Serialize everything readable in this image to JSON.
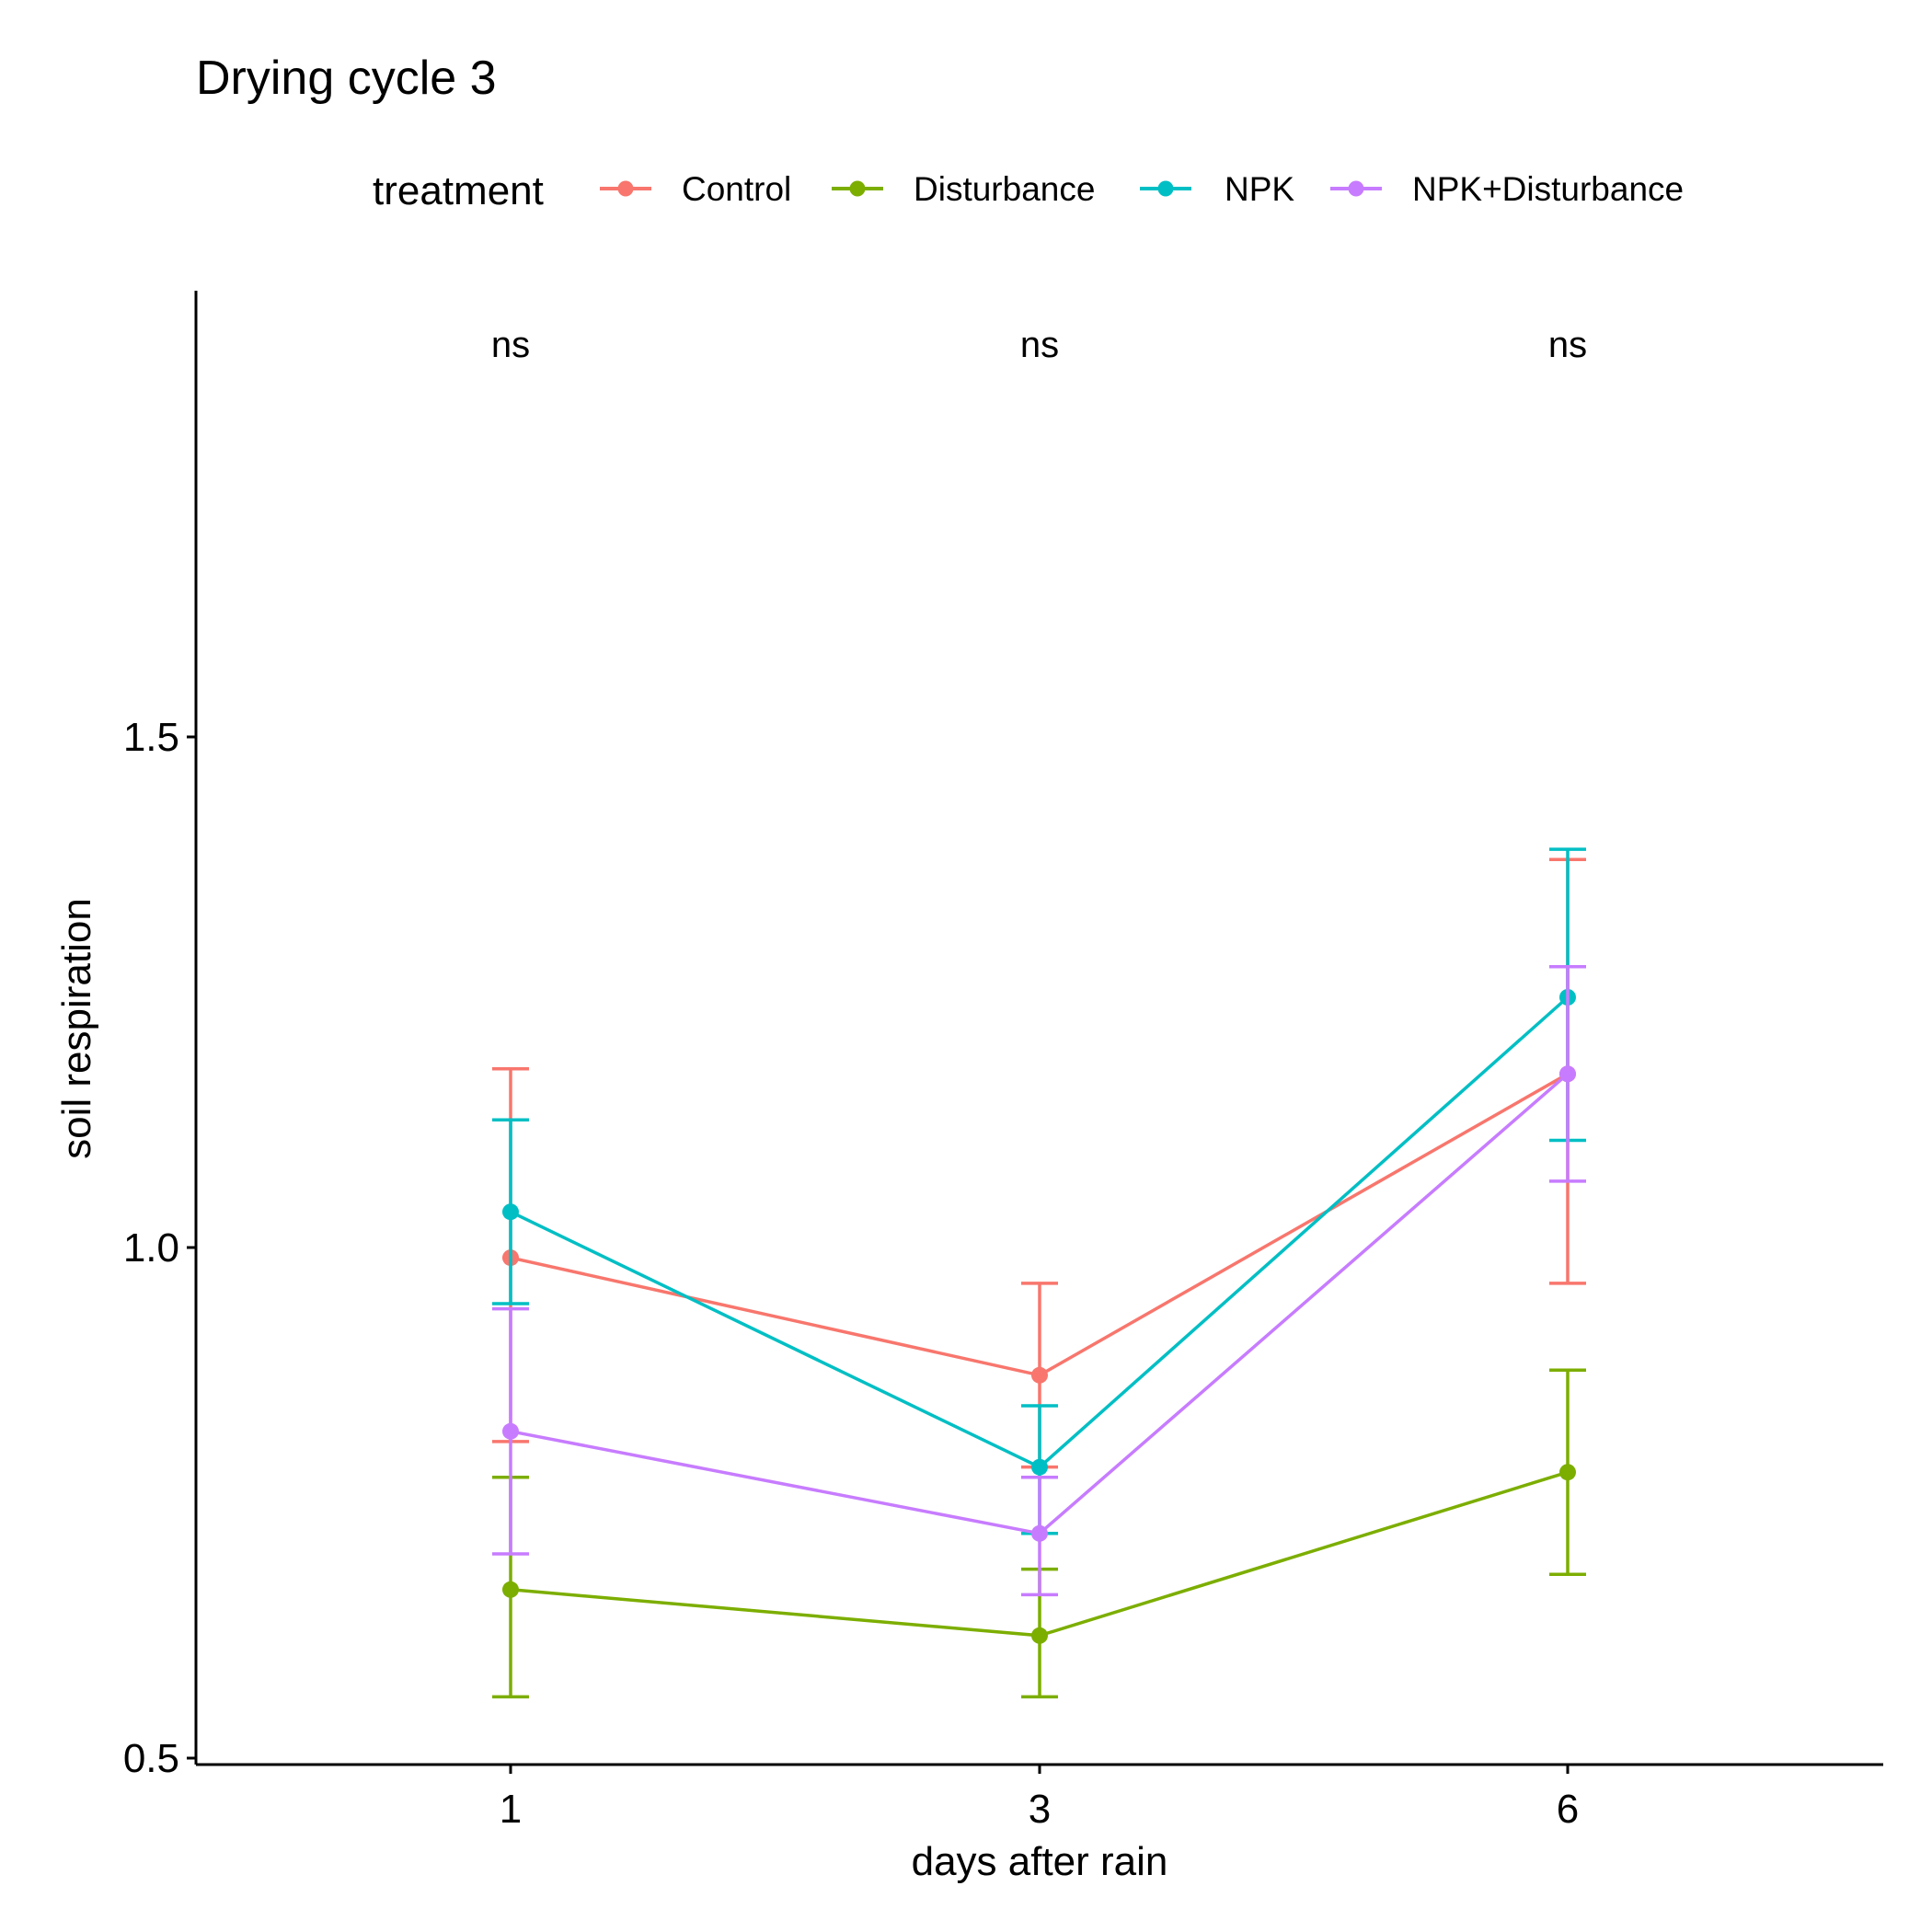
{
  "chart_data": {
    "type": "line",
    "title": "Drying cycle 3",
    "xlabel": "days after rain",
    "ylabel": "soil respiration",
    "categories": [
      "1",
      "3",
      "6"
    ],
    "yticks": [
      "0.5",
      "1.0",
      "1.5"
    ],
    "ylim": [
      0.49,
      1.95
    ],
    "grid": false,
    "legend": {
      "title": "treatment",
      "placement": "top"
    },
    "annotations": [
      "ns",
      "ns",
      "ns"
    ],
    "series": [
      {
        "name": "Control",
        "color": "#F8766D",
        "values": [
          0.99,
          0.875,
          1.17
        ],
        "lower": [
          0.81,
          0.785,
          0.965
        ],
        "upper": [
          1.175,
          0.965,
          1.38
        ]
      },
      {
        "name": "Disturbance",
        "color": "#7CAE00",
        "values": [
          0.665,
          0.62,
          0.78
        ],
        "lower": [
          0.56,
          0.56,
          0.68
        ],
        "upper": [
          0.775,
          0.685,
          0.88
        ]
      },
      {
        "name": "NPK",
        "color": "#00BFC4",
        "values": [
          1.035,
          0.785,
          1.245
        ],
        "lower": [
          0.945,
          0.72,
          1.105
        ],
        "upper": [
          1.125,
          0.845,
          1.39
        ]
      },
      {
        "name": "NPK+Disturbance",
        "color": "#C77CFF",
        "values": [
          0.82,
          0.72,
          1.17
        ],
        "lower": [
          0.7,
          0.66,
          1.065
        ],
        "upper": [
          0.94,
          0.775,
          1.275
        ]
      }
    ]
  }
}
